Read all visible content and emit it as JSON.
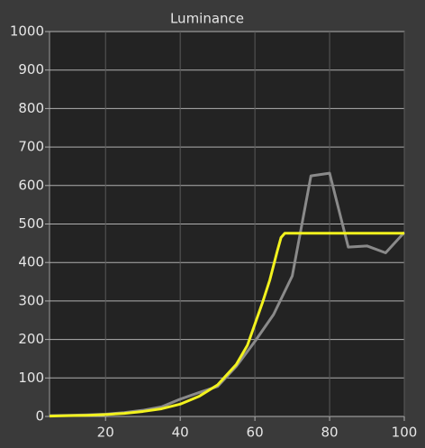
{
  "chart_data": {
    "type": "line",
    "title": "Luminance",
    "xlim": [
      5,
      100
    ],
    "xticks": [
      20,
      40,
      60,
      80,
      100
    ],
    "ylim": [
      0,
      1000
    ],
    "yticks": [
      0,
      100,
      200,
      300,
      400,
      500,
      600,
      700,
      800,
      900,
      1000
    ],
    "grid": true,
    "series": [
      {
        "color": "#8a8a8a",
        "x": [
          5,
          10,
          15,
          20,
          25,
          30,
          35,
          40,
          45,
          50,
          55,
          60,
          65,
          70,
          75,
          80,
          85,
          90,
          95,
          100
        ],
        "values": [
          2,
          3,
          4,
          6,
          10,
          16,
          25,
          45,
          62,
          78,
          130,
          195,
          265,
          365,
          625,
          632,
          440,
          443,
          425,
          478
        ]
      },
      {
        "color": "#f2f21e",
        "x": [
          5,
          10,
          15,
          20,
          25,
          30,
          35,
          40,
          45,
          50,
          55,
          58,
          60,
          62,
          64,
          66,
          67,
          68,
          70,
          100
        ],
        "values": [
          1,
          2,
          3,
          5,
          8,
          13,
          20,
          32,
          52,
          82,
          135,
          185,
          240,
          295,
          355,
          430,
          465,
          476,
          476,
          476
        ]
      }
    ]
  }
}
